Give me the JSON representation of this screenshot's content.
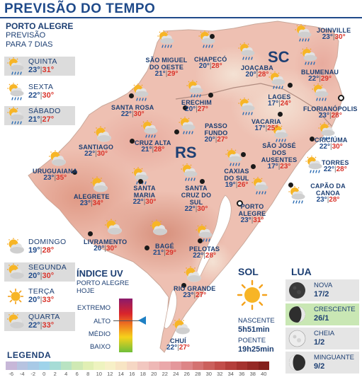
{
  "header": {
    "title": "PREVISÃO DO TEMPO"
  },
  "states": {
    "sc": "SC",
    "rs": "RS"
  },
  "porto_alegre_forecast": {
    "city": "PORTO ALEGRE",
    "subtitle_1": "PREVISÃO",
    "subtitle_2": "PARA 7 DIAS",
    "days": [
      {
        "name": "QUINTA",
        "min": "23°",
        "max": "31°",
        "icon": "sun-cloud-rain-icon",
        "shaded": true
      },
      {
        "name": "SEXTA",
        "min": "22°",
        "max": "30°",
        "icon": "sun-cloud-rain-icon",
        "shaded": false
      },
      {
        "name": "SÁBADO",
        "min": "21°",
        "max": "27°",
        "icon": "sun-cloud-rain-icon",
        "shaded": true
      },
      {
        "name": "DOMINGO",
        "min": "19°",
        "max": "28°",
        "icon": "sun-cloud-icon",
        "shaded": false
      },
      {
        "name": "SEGUNDA",
        "min": "20°",
        "max": "30°",
        "icon": "sun-cloud-icon",
        "shaded": true
      },
      {
        "name": "TERÇA",
        "min": "20°",
        "max": "33°",
        "icon": "sun-icon",
        "shaded": false
      },
      {
        "name": "QUARTA",
        "min": "22°",
        "max": "33°",
        "icon": "sun-cloud-icon",
        "shaded": true
      }
    ]
  },
  "cities": [
    {
      "name": "JOINVILLE",
      "min": "23°",
      "max": "30°"
    },
    {
      "name": "BLUMENAU",
      "min": "22°",
      "max": "29°"
    },
    {
      "name": "FLORIANÓPOLIS",
      "min": "23°",
      "max": "28°"
    },
    {
      "name": "LAGES",
      "min": "17°",
      "max": "24°"
    },
    {
      "name": "JOAÇABA",
      "min": "20°",
      "max": "28°"
    },
    {
      "name": "CHAPECÓ",
      "min": "20°",
      "max": "28°"
    },
    {
      "name": "SÃO MIGUEL DO OESTE",
      "min": "21°",
      "max": "29°"
    },
    {
      "name": "SANTA ROSA",
      "min": "22°",
      "max": "30°"
    },
    {
      "name": "ERECHIM",
      "min": "20°",
      "max": "27°"
    },
    {
      "name": "PASSO FUNDO",
      "min": "20°",
      "max": "27°"
    },
    {
      "name": "VACARIA",
      "min": "17°",
      "max": "25°"
    },
    {
      "name": "SÃO JOSÉ DOS AUSENTES",
      "min": "17°",
      "max": "23°"
    },
    {
      "name": "CRICIÚMA",
      "min": "22°",
      "max": "30°"
    },
    {
      "name": "TORRES",
      "min": "22°",
      "max": "28°"
    },
    {
      "name": "CAPÃO DA CANOA",
      "min": "23°",
      "max": "28°"
    },
    {
      "name": "SANTIAGO",
      "min": "22°",
      "max": "30°"
    },
    {
      "name": "CRUZ ALTA",
      "min": "21°",
      "max": "28°"
    },
    {
      "name": "URUGUAIANA",
      "min": "23°",
      "max": "35°"
    },
    {
      "name": "ALEGRETE",
      "min": "23°",
      "max": "34°"
    },
    {
      "name": "SANTA MARIA",
      "min": "22°",
      "max": "30°"
    },
    {
      "name": "SANTA CRUZ DO SUL",
      "min": "22°",
      "max": "30°"
    },
    {
      "name": "CAXIAS DO SUL",
      "min": "19°",
      "max": "26°"
    },
    {
      "name": "PORTO ALEGRE",
      "min": "23°",
      "max": "31°"
    },
    {
      "name": "LIVRAMENTO",
      "min": "20°",
      "max": "30°"
    },
    {
      "name": "BAGÉ",
      "min": "21°",
      "max": "29°"
    },
    {
      "name": "PELOTAS",
      "min": "22°",
      "max": "28°"
    },
    {
      "name": "RIO GRANDE",
      "min": "23°",
      "max": "27°"
    },
    {
      "name": "CHUÍ",
      "min": "22°",
      "max": "27°"
    }
  ],
  "uv": {
    "title": "ÍNDICE UV",
    "subtitle_1": "PORTO ALEGRE",
    "subtitle_2": "HOJE",
    "levels": [
      "EXTREMO",
      "ALTO",
      "MÉDIO",
      "BAIXO"
    ],
    "current": "ALTO"
  },
  "sun": {
    "title": "SOL",
    "sunrise_label": "NASCENTE",
    "sunrise": "5h51min",
    "sunset_label": "POENTE",
    "sunset": "19h25min"
  },
  "moon": {
    "title": "LUA",
    "phases": [
      {
        "name": "NOVA",
        "date": "17/2",
        "icon": "new-moon-icon",
        "highlight": false
      },
      {
        "name": "CRESCENTE",
        "date": "26/1",
        "icon": "first-quarter-moon-icon",
        "highlight": true
      },
      {
        "name": "CHEIA",
        "date": "1/2",
        "icon": "full-moon-icon",
        "highlight": false
      },
      {
        "name": "MINGUANTE",
        "date": "9/2",
        "icon": "last-quarter-moon-icon",
        "highlight": false
      }
    ]
  },
  "legend": {
    "title": "LEGENDA",
    "ticks": [
      "-6",
      "-4",
      "-2",
      "0",
      "2",
      "4",
      "6",
      "8",
      "10",
      "12",
      "14",
      "16",
      "18",
      "20",
      "22",
      "24",
      "26",
      "28",
      "30",
      "32",
      "34",
      "36",
      "38",
      "40"
    ],
    "colors": [
      "#c7b7d8",
      "#b7c3e0",
      "#a8c9e6",
      "#9fd3ea",
      "#a6dcd6",
      "#b9e3c2",
      "#cfe9b4",
      "#e1efb4",
      "#eef3bf",
      "#f7f0c7",
      "#f8e5c4",
      "#f6d7c4",
      "#f2c7c0",
      "#eeb8b6",
      "#eaa8aa",
      "#e4979b",
      "#dd8587",
      "#d47271",
      "#cb605c",
      "#c24e4a",
      "#b43f3b",
      "#a5332f",
      "#952925",
      "#84201c"
    ]
  },
  "colors": {
    "title_blue": "#1f4a8a",
    "text_blue": "#1d3f73",
    "max_red": "#d9342b",
    "uv_arrow": "#1e80c4",
    "moon_highlight": "#c9e7b4"
  }
}
